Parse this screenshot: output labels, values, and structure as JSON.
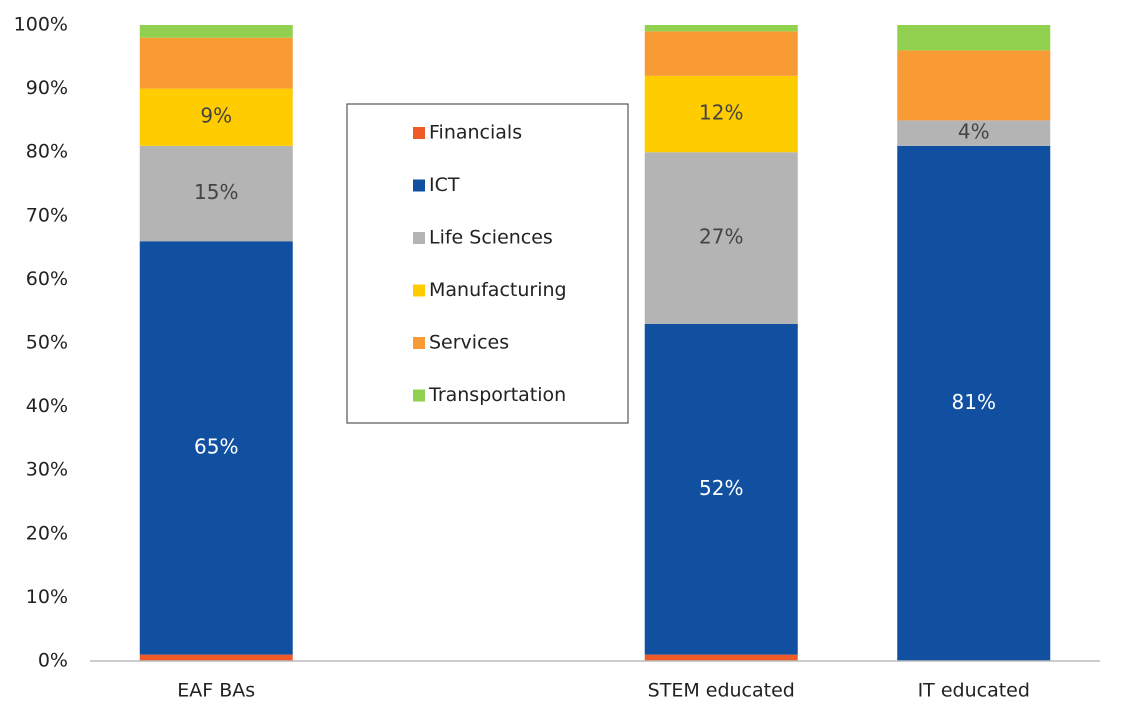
{
  "chart_data": {
    "type": "stacked_bar",
    "categories": [
      "EAF BAs",
      null,
      "STEM educated",
      "IT educated"
    ],
    "series": [
      {
        "name": "Financials",
        "color": "#f05a28",
        "values": [
          1,
          null,
          1,
          0
        ],
        "value_labels": [
          null,
          null,
          null,
          null
        ]
      },
      {
        "name": "ICT",
        "color": "#1150a0",
        "values": [
          65,
          null,
          52,
          81
        ],
        "value_labels": [
          "65%",
          null,
          "52%",
          "81%"
        ]
      },
      {
        "name": "Life Sciences",
        "color": "#b4b4b4",
        "values": [
          15,
          null,
          27,
          4
        ],
        "value_labels": [
          "15%",
          null,
          "27%",
          "4%"
        ]
      },
      {
        "name": "Manufacturing",
        "color": "#ffcc00",
        "values": [
          9,
          null,
          12,
          0
        ],
        "value_labels": [
          "9%",
          null,
          "12%",
          null
        ]
      },
      {
        "name": "Services",
        "color": "#f99b35",
        "values": [
          8,
          null,
          7,
          11
        ],
        "value_labels": [
          null,
          null,
          null,
          null
        ]
      },
      {
        "name": "Transportation",
        "color": "#92d050",
        "values": [
          2,
          null,
          1,
          4
        ],
        "value_labels": [
          null,
          null,
          null,
          null
        ]
      }
    ],
    "ylim": [
      0,
      100
    ],
    "yticks": [
      {
        "value": 0,
        "label": "0%"
      },
      {
        "value": 10,
        "label": "10%"
      },
      {
        "value": 20,
        "label": "20%"
      },
      {
        "value": 30,
        "label": "30%"
      },
      {
        "value": 40,
        "label": "40%"
      },
      {
        "value": 50,
        "label": "50%"
      },
      {
        "value": 60,
        "label": "60%"
      },
      {
        "value": 70,
        "label": "70%"
      },
      {
        "value": 80,
        "label": "80%"
      },
      {
        "value": 90,
        "label": "90%"
      },
      {
        "value": 100,
        "label": "100%"
      }
    ]
  }
}
